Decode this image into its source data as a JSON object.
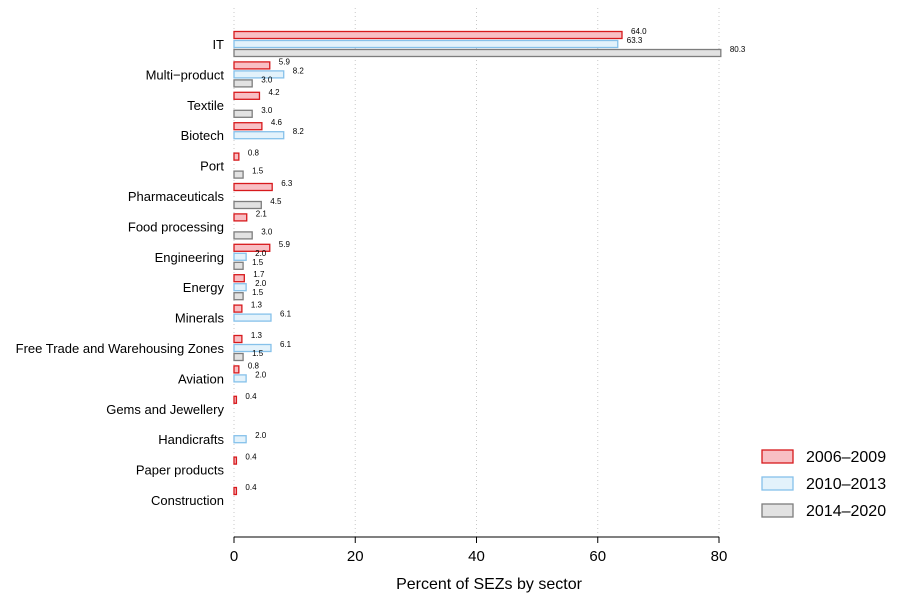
{
  "chart_data": {
    "type": "bar",
    "orientation": "horizontal",
    "categories": [
      "IT",
      "Multi−product",
      "Textile",
      "Biotech",
      "Port",
      "Pharmaceuticals",
      "Food processing",
      "Engineering",
      "Energy",
      "Minerals",
      "Free Trade and Warehousing Zones",
      "Aviation",
      "Gems and Jewellery",
      "Handicrafts",
      "Paper products",
      "Construction"
    ],
    "series": [
      {
        "name": "2006–2009",
        "fill": "#f8bfc4",
        "stroke": "#d7191c",
        "values": [
          64.0,
          5.9,
          4.2,
          4.6,
          0.8,
          6.3,
          2.1,
          5.9,
          1.7,
          1.3,
          1.3,
          0.8,
          0.4,
          null,
          0.4,
          0.4
        ],
        "labels": [
          "64.0",
          "5.9",
          "4.2",
          "4.6",
          "0.8",
          "6.3",
          "2.1",
          "5.9",
          "1.7",
          "1.3",
          "1.3",
          "0.8",
          "0.4",
          null,
          "0.4",
          "0.4"
        ]
      },
      {
        "name": "2010–2013",
        "fill": "#e3f2fb",
        "stroke": "#86c1ea",
        "values": [
          63.3,
          8.2,
          null,
          8.2,
          null,
          null,
          null,
          2.0,
          2.0,
          6.1,
          6.1,
          2.0,
          null,
          2.0,
          null,
          null
        ],
        "labels": [
          "63.3",
          "8.2",
          null,
          "8.2",
          null,
          null,
          null,
          "2.0",
          "2.0",
          "6.1",
          "6.1",
          "2.0",
          null,
          "2.0",
          null,
          null
        ]
      },
      {
        "name": "2014–2020",
        "fill": "#e2e2e2",
        "stroke": "#7d7d7d",
        "values": [
          80.3,
          3.0,
          3.0,
          null,
          1.5,
          4.5,
          3.0,
          1.5,
          1.5,
          null,
          1.5,
          null,
          null,
          null,
          null,
          null
        ],
        "labels": [
          "80.3",
          "3.0",
          "3.0",
          null,
          "1.5",
          "4.5",
          "3.0",
          "1.5",
          "1.5",
          null,
          "1.5",
          null,
          null,
          null,
          null,
          null
        ]
      }
    ],
    "xlabel": "Percent of SEZs by sector",
    "xlim": [
      0,
      80
    ],
    "xticks": [
      "0",
      "20",
      "40",
      "60",
      "80"
    ],
    "grid": "vertical dotted",
    "legend_position": "right"
  }
}
